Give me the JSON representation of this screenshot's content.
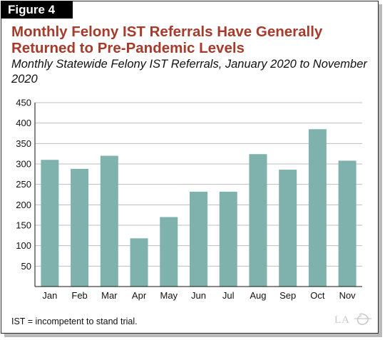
{
  "figure_label": "Figure 4",
  "footnote": "IST = incompetent to stand trial.",
  "logo_text": "LAO",
  "colors": {
    "bar": "#7fb2ac",
    "title": "#a63a2b",
    "grid": "#bdbdbd"
  },
  "chart_data": {
    "type": "bar",
    "title": "Monthly Felony IST Referrals Have Generally Returned to Pre-Pandemic Levels",
    "subtitle": "Monthly Statewide Felony IST Referrals, January 2020 to November 2020",
    "xlabel": "",
    "ylabel": "",
    "categories": [
      "Jan",
      "Feb",
      "Mar",
      "Apr",
      "May",
      "Jun",
      "Jul",
      "Aug",
      "Sep",
      "Oct",
      "Nov"
    ],
    "values": [
      310,
      288,
      320,
      118,
      170,
      232,
      232,
      324,
      286,
      385,
      308
    ],
    "ylim": [
      0,
      450
    ],
    "yticks": [
      50,
      100,
      150,
      200,
      250,
      300,
      350,
      400,
      450
    ],
    "grid": true,
    "legend": "none"
  }
}
